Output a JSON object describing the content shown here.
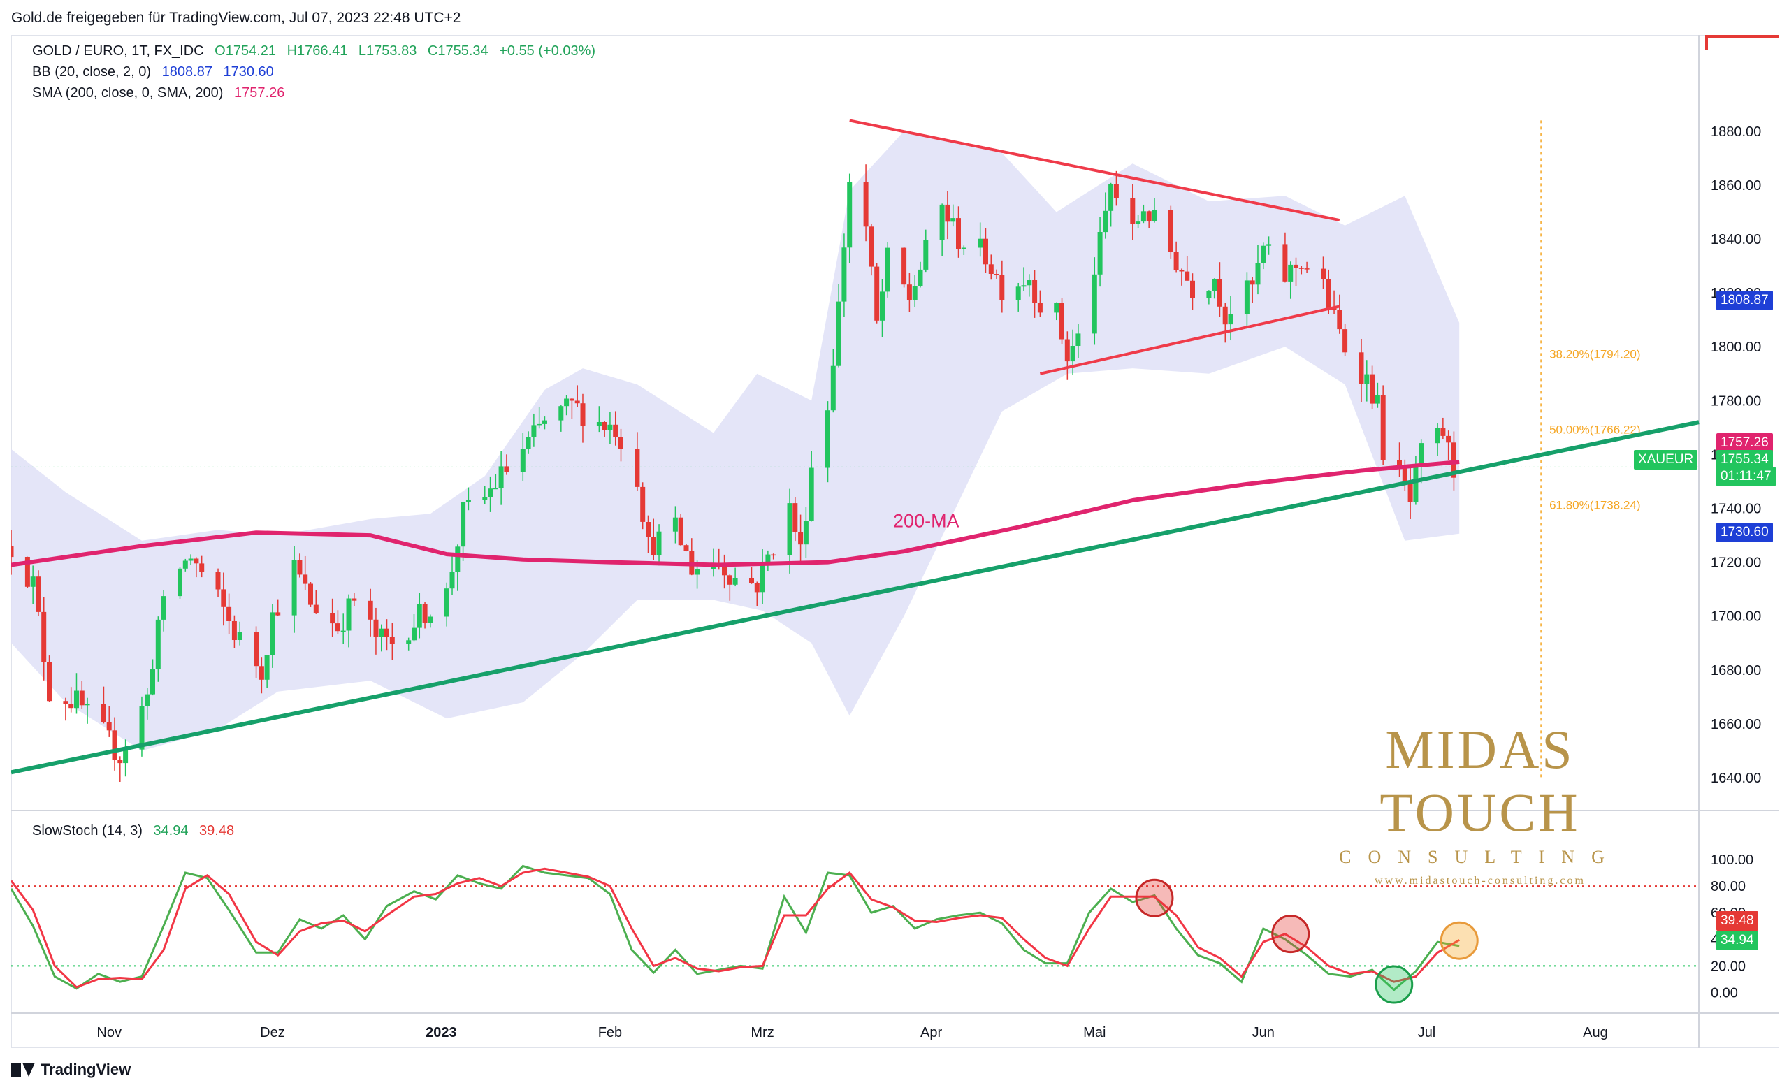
{
  "header": {
    "publish_line": "Gold.de freigegeben für TradingView.com, Jul 07, 2023 22:48 UTC+2"
  },
  "legend": {
    "symbol": "GOLD / EURO, 1T, FX_IDC",
    "open": "O1754.21",
    "high": "H1766.41",
    "low": "L1753.83",
    "close": "C1755.34",
    "change": "+0.55 (+0.03%)",
    "bb_label": "BB (20, close, 2, 0)",
    "bb_upper": "1808.87",
    "bb_lower": "1730.60",
    "sma_label": "SMA (200, close, 0, SMA, 200)",
    "sma_value": "1757.26",
    "stoch_label": "SlowStoch (14, 3)",
    "stoch_k": "34.94",
    "stoch_d": "39.48"
  },
  "price_tags": {
    "bb_upper": "1808.87",
    "sma": "1757.26",
    "symbol": "XAUEUR",
    "last": "1755.34",
    "countdown": "01:11:47",
    "bb_lower": "1730.60",
    "stoch_d": "39.48",
    "stoch_k": "34.94"
  },
  "annotations": {
    "ma_label": "200-MA",
    "fib_382": "38.20%(1794.20)",
    "fib_500": "50.00%(1766.22)",
    "fib_618": "61.80%(1738.24)"
  },
  "brand": {
    "name": "MIDAS TOUCH",
    "sub": "CONSULTING",
    "url": "www.midastouch-consulting.com"
  },
  "footer": {
    "logo_text": "TradingView"
  },
  "colors": {
    "up": "#22c55e",
    "down": "#e53935",
    "sma": "#e0246e",
    "trend": "#16a06a",
    "triangle": "#ef3b4a",
    "band": "#dfe1f7",
    "fib": "#f5a623",
    "bb_tag": "#1e3fd6"
  },
  "chart_data": {
    "type": "candlestick",
    "title": "GOLD / EURO, 1T, FX_IDC",
    "x_tick_labels": [
      "Nov",
      "Dez",
      "2023",
      "Feb",
      "Mrz",
      "Apr",
      "Mai",
      "Jun",
      "Jul",
      "Aug"
    ],
    "y_tick_labels": [
      1640,
      1660,
      1680,
      1700,
      1720,
      1740,
      1760,
      1780,
      1800,
      1820,
      1840,
      1860,
      1880
    ],
    "ylim": [
      1633,
      1895
    ],
    "close_path": [
      [
        "2022-10-14",
        1726
      ],
      [
        "2022-10-18",
        1712
      ],
      [
        "2022-10-21",
        1672
      ],
      [
        "2022-10-26",
        1668
      ],
      [
        "2022-10-31",
        1656
      ],
      [
        "2022-11-03",
        1648
      ],
      [
        "2022-11-08",
        1670
      ],
      [
        "2022-11-10",
        1698
      ],
      [
        "2022-11-14",
        1718
      ],
      [
        "2022-11-16",
        1722
      ],
      [
        "2022-11-21",
        1706
      ],
      [
        "2022-11-24",
        1694
      ],
      [
        "2022-11-29",
        1680
      ],
      [
        "2022-12-01",
        1700
      ],
      [
        "2022-12-05",
        1718
      ],
      [
        "2022-12-08",
        1705
      ],
      [
        "2022-12-13",
        1696
      ],
      [
        "2022-12-16",
        1706
      ],
      [
        "2022-12-20",
        1692
      ],
      [
        "2022-12-23",
        1690
      ],
      [
        "2022-12-28",
        1700
      ],
      [
        "2023-01-02",
        1708
      ],
      [
        "2023-01-05",
        1738
      ],
      [
        "2023-01-09",
        1744
      ],
      [
        "2023-01-12",
        1752
      ],
      [
        "2023-01-17",
        1764
      ],
      [
        "2023-01-20",
        1772
      ],
      [
        "2023-01-25",
        1778
      ],
      [
        "2023-01-30",
        1772
      ],
      [
        "2023-02-02",
        1770
      ],
      [
        "2023-02-06",
        1752
      ],
      [
        "2023-02-08",
        1726
      ],
      [
        "2023-02-13",
        1732
      ],
      [
        "2023-02-16",
        1718
      ],
      [
        "2023-02-21",
        1720
      ],
      [
        "2023-02-24",
        1714
      ],
      [
        "2023-02-28",
        1712
      ],
      [
        "2023-03-02",
        1722
      ],
      [
        "2023-03-06",
        1740
      ],
      [
        "2023-03-08",
        1724
      ],
      [
        "2023-03-10",
        1756
      ],
      [
        "2023-03-13",
        1778
      ],
      [
        "2023-03-15",
        1815
      ],
      [
        "2023-03-17",
        1862
      ],
      [
        "2023-03-20",
        1844
      ],
      [
        "2023-03-22",
        1808
      ],
      [
        "2023-03-24",
        1832
      ],
      [
        "2023-03-28",
        1818
      ],
      [
        "2023-04-03",
        1852
      ],
      [
        "2023-04-06",
        1840
      ],
      [
        "2023-04-11",
        1834
      ],
      [
        "2023-04-14",
        1822
      ],
      [
        "2023-04-19",
        1826
      ],
      [
        "2023-04-21",
        1816
      ],
      [
        "2023-04-24",
        1812
      ],
      [
        "2023-04-26",
        1796
      ],
      [
        "2023-04-28",
        1803
      ],
      [
        "2023-05-02",
        1838
      ],
      [
        "2023-05-04",
        1860
      ],
      [
        "2023-05-08",
        1842
      ],
      [
        "2023-05-10",
        1852
      ],
      [
        "2023-05-12",
        1846
      ],
      [
        "2023-05-16",
        1832
      ],
      [
        "2023-05-19",
        1822
      ],
      [
        "2023-05-23",
        1826
      ],
      [
        "2023-05-25",
        1812
      ],
      [
        "2023-05-30",
        1822
      ],
      [
        "2023-06-01",
        1836
      ],
      [
        "2023-06-05",
        1826
      ],
      [
        "2023-06-08",
        1832
      ],
      [
        "2023-06-12",
        1822
      ],
      [
        "2023-06-14",
        1810
      ],
      [
        "2023-06-16",
        1800
      ],
      [
        "2023-06-20",
        1788
      ],
      [
        "2023-06-22",
        1778
      ],
      [
        "2023-06-23",
        1762
      ],
      [
        "2023-06-26",
        1752
      ],
      [
        "2023-06-28",
        1742
      ],
      [
        "2023-06-30",
        1760
      ],
      [
        "2023-07-04",
        1768
      ],
      [
        "2023-07-06",
        1754
      ]
    ],
    "sma200": [
      [
        "2022-10-14",
        1719
      ],
      [
        "2022-11-07",
        1726
      ],
      [
        "2022-11-28",
        1731
      ],
      [
        "2022-12-19",
        1730
      ],
      [
        "2023-01-02",
        1723
      ],
      [
        "2023-01-16",
        1721
      ],
      [
        "2023-02-01",
        1720
      ],
      [
        "2023-02-21",
        1719
      ],
      [
        "2023-03-13",
        1720
      ],
      [
        "2023-03-27",
        1724
      ],
      [
        "2023-04-17",
        1733
      ],
      [
        "2023-05-08",
        1743
      ],
      [
        "2023-05-29",
        1749
      ],
      [
        "2023-06-19",
        1754
      ],
      [
        "2023-07-07",
        1757.26
      ]
    ],
    "bollinger_upper": [
      [
        "2022-10-14",
        1762
      ],
      [
        "2022-10-24",
        1746
      ],
      [
        "2022-11-07",
        1728
      ],
      [
        "2022-11-21",
        1732
      ],
      [
        "2022-12-02",
        1730
      ],
      [
        "2022-12-19",
        1736
      ],
      [
        "2022-12-30",
        1738
      ],
      [
        "2023-01-09",
        1752
      ],
      [
        "2023-01-20",
        1784
      ],
      [
        "2023-01-27",
        1792
      ],
      [
        "2023-02-06",
        1786
      ],
      [
        "2023-02-20",
        1768
      ],
      [
        "2023-02-28",
        1790
      ],
      [
        "2023-03-10",
        1780
      ],
      [
        "2023-03-17",
        1858
      ],
      [
        "2023-03-27",
        1880
      ],
      [
        "2023-04-14",
        1872
      ],
      [
        "2023-04-24",
        1850
      ],
      [
        "2023-05-08",
        1868
      ],
      [
        "2023-05-22",
        1854
      ],
      [
        "2023-06-05",
        1856
      ],
      [
        "2023-06-16",
        1845
      ],
      [
        "2023-06-27",
        1856
      ],
      [
        "2023-07-07",
        1808.87
      ]
    ],
    "bollinger_lower": [
      [
        "2022-10-14",
        1690
      ],
      [
        "2022-10-24",
        1668
      ],
      [
        "2022-11-07",
        1650
      ],
      [
        "2022-11-21",
        1658
      ],
      [
        "2022-12-02",
        1672
      ],
      [
        "2022-12-19",
        1676
      ],
      [
        "2023-01-02",
        1662
      ],
      [
        "2023-01-16",
        1668
      ],
      [
        "2023-01-27",
        1686
      ],
      [
        "2023-02-06",
        1706
      ],
      [
        "2023-02-20",
        1706
      ],
      [
        "2023-03-01",
        1702
      ],
      [
        "2023-03-10",
        1690
      ],
      [
        "2023-03-17",
        1663
      ],
      [
        "2023-03-27",
        1700
      ],
      [
        "2023-04-14",
        1776
      ],
      [
        "2023-04-26",
        1790
      ],
      [
        "2023-05-08",
        1792
      ],
      [
        "2023-05-22",
        1790
      ],
      [
        "2023-06-05",
        1800
      ],
      [
        "2023-06-16",
        1786
      ],
      [
        "2023-06-27",
        1728
      ],
      [
        "2023-07-07",
        1730.6
      ]
    ],
    "trendline_support": [
      [
        "2022-10-14",
        1642
      ],
      [
        "2023-08-20",
        1772
      ]
    ],
    "triangle_upper": [
      [
        "2023-03-17",
        1884
      ],
      [
        "2023-06-15",
        1847
      ]
    ],
    "triangle_lower": [
      [
        "2023-04-21",
        1790
      ],
      [
        "2023-06-15",
        1815
      ]
    ],
    "fibonacci": [
      {
        "label": "38.20%(1794.20)",
        "value": 1794.2
      },
      {
        "label": "50.00%(1766.22)",
        "value": 1766.22
      },
      {
        "label": "61.80%(1738.24)",
        "value": 1738.24
      }
    ],
    "stochastic": {
      "ylim": [
        -5,
        100
      ],
      "y_tick_labels": [
        "0.00",
        "20.00",
        "40.00",
        "60.00",
        "80.00",
        "100.00"
      ],
      "overbought": 80,
      "oversold": 20,
      "k": [
        [
          "2022-10-14",
          78
        ],
        [
          "2022-10-18",
          50
        ],
        [
          "2022-10-22",
          12
        ],
        [
          "2022-10-26",
          3
        ],
        [
          "2022-10-30",
          14
        ],
        [
          "2022-11-03",
          8
        ],
        [
          "2022-11-07",
          12
        ],
        [
          "2022-11-11",
          50
        ],
        [
          "2022-11-15",
          90
        ],
        [
          "2022-11-19",
          86
        ],
        [
          "2022-11-23",
          62
        ],
        [
          "2022-11-28",
          30
        ],
        [
          "2022-12-02",
          30
        ],
        [
          "2022-12-06",
          55
        ],
        [
          "2022-12-10",
          48
        ],
        [
          "2022-12-14",
          58
        ],
        [
          "2022-12-18",
          40
        ],
        [
          "2022-12-22",
          65
        ],
        [
          "2022-12-27",
          76
        ],
        [
          "2022-12-31",
          70
        ],
        [
          "2023-01-04",
          88
        ],
        [
          "2023-01-08",
          82
        ],
        [
          "2023-01-12",
          78
        ],
        [
          "2023-01-16",
          95
        ],
        [
          "2023-01-20",
          90
        ],
        [
          "2023-01-24",
          88
        ],
        [
          "2023-01-28",
          86
        ],
        [
          "2023-02-01",
          74
        ],
        [
          "2023-02-05",
          32
        ],
        [
          "2023-02-09",
          15
        ],
        [
          "2023-02-13",
          32
        ],
        [
          "2023-02-17",
          14
        ],
        [
          "2023-02-21",
          17
        ],
        [
          "2023-02-25",
          20
        ],
        [
          "2023-03-01",
          18
        ],
        [
          "2023-03-05",
          72
        ],
        [
          "2023-03-09",
          45
        ],
        [
          "2023-03-13",
          90
        ],
        [
          "2023-03-17",
          88
        ],
        [
          "2023-03-21",
          60
        ],
        [
          "2023-03-25",
          65
        ],
        [
          "2023-03-29",
          48
        ],
        [
          "2023-04-02",
          55
        ],
        [
          "2023-04-06",
          58
        ],
        [
          "2023-04-10",
          60
        ],
        [
          "2023-04-14",
          52
        ],
        [
          "2023-04-18",
          32
        ],
        [
          "2023-04-22",
          22
        ],
        [
          "2023-04-26",
          22
        ],
        [
          "2023-04-30",
          60
        ],
        [
          "2023-05-04",
          78
        ],
        [
          "2023-05-08",
          68
        ],
        [
          "2023-05-12",
          73
        ],
        [
          "2023-05-16",
          48
        ],
        [
          "2023-05-20",
          28
        ],
        [
          "2023-05-24",
          22
        ],
        [
          "2023-05-28",
          8
        ],
        [
          "2023-06-01",
          48
        ],
        [
          "2023-06-05",
          40
        ],
        [
          "2023-06-09",
          28
        ],
        [
          "2023-06-13",
          14
        ],
        [
          "2023-06-17",
          12
        ],
        [
          "2023-06-21",
          17
        ],
        [
          "2023-06-25",
          2
        ],
        [
          "2023-06-29",
          16
        ],
        [
          "2023-07-03",
          38
        ],
        [
          "2023-07-07",
          34.94
        ]
      ],
      "d": [
        [
          "2022-10-14",
          84
        ],
        [
          "2022-10-18",
          62
        ],
        [
          "2022-10-22",
          20
        ],
        [
          "2022-10-26",
          4
        ],
        [
          "2022-10-30",
          10
        ],
        [
          "2022-11-03",
          11
        ],
        [
          "2022-11-07",
          10
        ],
        [
          "2022-11-11",
          32
        ],
        [
          "2022-11-15",
          78
        ],
        [
          "2022-11-19",
          88
        ],
        [
          "2022-11-23",
          74
        ],
        [
          "2022-11-28",
          38
        ],
        [
          "2022-12-02",
          28
        ],
        [
          "2022-12-06",
          46
        ],
        [
          "2022-12-10",
          52
        ],
        [
          "2022-12-14",
          54
        ],
        [
          "2022-12-18",
          46
        ],
        [
          "2022-12-22",
          58
        ],
        [
          "2022-12-27",
          72
        ],
        [
          "2022-12-31",
          74
        ],
        [
          "2023-01-04",
          82
        ],
        [
          "2023-01-08",
          86
        ],
        [
          "2023-01-12",
          80
        ],
        [
          "2023-01-16",
          90
        ],
        [
          "2023-01-20",
          93
        ],
        [
          "2023-01-24",
          90
        ],
        [
          "2023-01-28",
          87
        ],
        [
          "2023-02-01",
          80
        ],
        [
          "2023-02-05",
          48
        ],
        [
          "2023-02-09",
          20
        ],
        [
          "2023-02-13",
          26
        ],
        [
          "2023-02-17",
          18
        ],
        [
          "2023-02-21",
          16
        ],
        [
          "2023-02-25",
          19
        ],
        [
          "2023-03-01",
          20
        ],
        [
          "2023-03-05",
          58
        ],
        [
          "2023-03-09",
          58
        ],
        [
          "2023-03-13",
          78
        ],
        [
          "2023-03-17",
          90
        ],
        [
          "2023-03-21",
          70
        ],
        [
          "2023-03-25",
          64
        ],
        [
          "2023-03-29",
          54
        ],
        [
          "2023-04-02",
          53
        ],
        [
          "2023-04-06",
          56
        ],
        [
          "2023-04-10",
          58
        ],
        [
          "2023-04-14",
          56
        ],
        [
          "2023-04-18",
          40
        ],
        [
          "2023-04-22",
          26
        ],
        [
          "2023-04-26",
          20
        ],
        [
          "2023-04-30",
          48
        ],
        [
          "2023-05-04",
          72
        ],
        [
          "2023-05-08",
          72
        ],
        [
          "2023-05-12",
          72
        ],
        [
          "2023-05-16",
          58
        ],
        [
          "2023-05-20",
          34
        ],
        [
          "2023-05-24",
          26
        ],
        [
          "2023-05-28",
          12
        ],
        [
          "2023-06-01",
          38
        ],
        [
          "2023-06-05",
          44
        ],
        [
          "2023-06-09",
          34
        ],
        [
          "2023-06-13",
          20
        ],
        [
          "2023-06-17",
          14
        ],
        [
          "2023-06-21",
          16
        ],
        [
          "2023-06-25",
          8
        ],
        [
          "2023-06-29",
          12
        ],
        [
          "2023-07-03",
          30
        ],
        [
          "2023-07-07",
          39.48
        ]
      ],
      "highlight_circles": [
        {
          "date": "2023-05-12",
          "value": 71,
          "color": "red"
        },
        {
          "date": "2023-06-06",
          "value": 44,
          "color": "red"
        },
        {
          "date": "2023-06-25",
          "value": 6,
          "color": "green"
        },
        {
          "date": "2023-07-07",
          "value": 39,
          "color": "orange"
        }
      ]
    }
  }
}
